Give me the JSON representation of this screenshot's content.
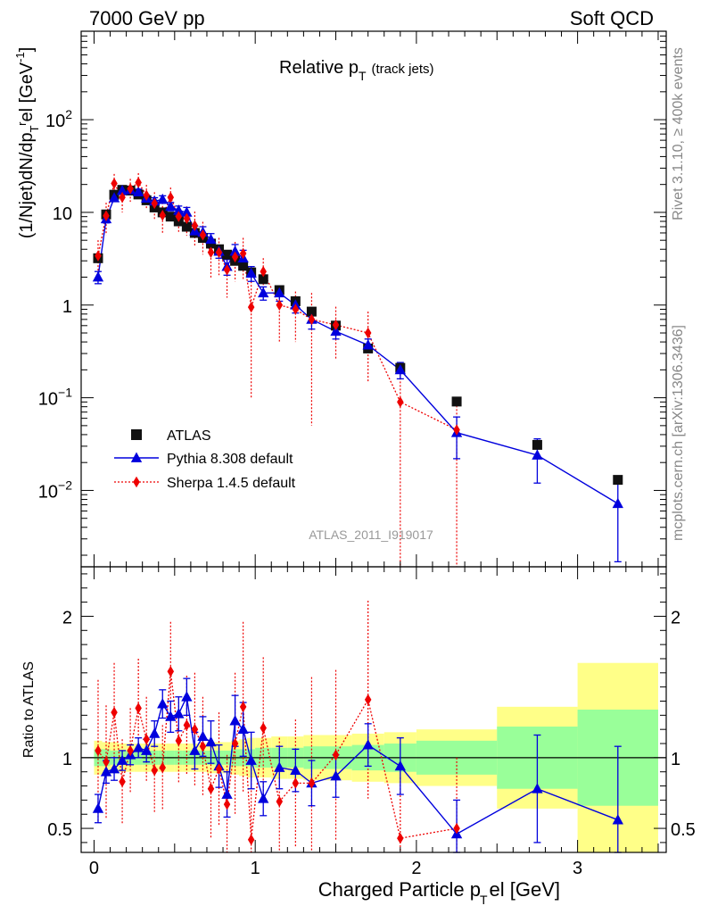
{
  "header": {
    "left": "7000 GeV pp",
    "right": "Soft QCD",
    "rivet": "Rivet 3.1.10, ≥ 400k events",
    "mcplots": "mcplots.cern.ch [arXiv:1306.3436]",
    "analysis": "ATLAS_2011_I919017"
  },
  "chart_data": [
    {
      "type": "scatter",
      "panel": "main",
      "title_main": "Relative p",
      "title_sub": "T",
      "title_note": "(track jets)",
      "ylabel": "(1/Njet)dN/dp",
      "ylabel_tail": "el [GeV",
      "ylabel_exp": "-1",
      "ylabel_close": "]",
      "yscale": "log",
      "ylim": [
        0.0015,
        900
      ],
      "xlim": [
        -0.08,
        3.55
      ],
      "y_ticks": [
        {
          "v": 100,
          "label": "10",
          "exp": "2"
        },
        {
          "v": 10,
          "label": "10",
          "exp": ""
        },
        {
          "v": 1,
          "label": "1",
          "exp": ""
        },
        {
          "v": 0.1,
          "label": "10",
          "exp": "−1"
        },
        {
          "v": 0.01,
          "label": "10",
          "exp": "−2"
        }
      ],
      "legend": [
        {
          "key": "atlas",
          "label": "ATLAS"
        },
        {
          "key": "pythia",
          "label": "Pythia 8.308 default"
        },
        {
          "key": "sherpa",
          "label": "Sherpa 1.4.5 default"
        }
      ],
      "series": [
        {
          "name": "ATLAS",
          "x": [
            0.025,
            0.075,
            0.125,
            0.175,
            0.225,
            0.275,
            0.325,
            0.375,
            0.425,
            0.475,
            0.525,
            0.575,
            0.625,
            0.675,
            0.725,
            0.775,
            0.825,
            0.875,
            0.925,
            0.975,
            1.05,
            1.15,
            1.25,
            1.35,
            1.5,
            1.7,
            1.9,
            2.25,
            2.75,
            3.25
          ],
          "y": [
            3.2,
            9.5,
            15.5,
            17.5,
            17.2,
            15.6,
            13.5,
            11.3,
            10.0,
            9.0,
            8.0,
            7.0,
            6.0,
            5.3,
            4.6,
            4.0,
            3.5,
            3.0,
            2.65,
            2.25,
            1.9,
            1.45,
            1.1,
            0.85,
            0.6,
            0.34,
            0.21,
            0.091,
            0.031,
            0.013
          ]
        },
        {
          "name": "Pythia 8.308 default",
          "x": [
            0.025,
            0.075,
            0.125,
            0.175,
            0.225,
            0.275,
            0.325,
            0.375,
            0.425,
            0.475,
            0.525,
            0.575,
            0.625,
            0.675,
            0.725,
            0.775,
            0.825,
            0.875,
            0.925,
            0.975,
            1.05,
            1.15,
            1.25,
            1.35,
            1.5,
            1.7,
            1.9,
            2.25,
            2.75,
            3.25
          ],
          "y": [
            2.0,
            8.5,
            14.3,
            17.2,
            17.5,
            16.6,
            14.2,
            13.2,
            13.8,
            11.6,
            10.5,
            10.0,
            6.3,
            6.1,
            5.1,
            3.8,
            2.6,
            3.8,
            3.2,
            2.2,
            1.35,
            1.35,
            1.0,
            0.7,
            0.52,
            0.37,
            0.2,
            0.042,
            0.024,
            0.0072
          ],
          "err": [
            0.3,
            0.8,
            1.2,
            1.2,
            1.2,
            1.2,
            1.2,
            1.2,
            1.3,
            1.2,
            1.2,
            1.3,
            0.8,
            0.9,
            0.8,
            0.6,
            0.5,
            0.7,
            0.7,
            0.4,
            0.22,
            0.25,
            0.18,
            0.15,
            0.09,
            0.06,
            0.04,
            0.02,
            0.012,
            0.0055
          ]
        },
        {
          "name": "Sherpa 1.4.5 default",
          "x": [
            0.025,
            0.075,
            0.125,
            0.175,
            0.225,
            0.275,
            0.325,
            0.375,
            0.425,
            0.475,
            0.525,
            0.575,
            0.625,
            0.675,
            0.725,
            0.775,
            0.825,
            0.875,
            0.925,
            0.975,
            1.05,
            1.15,
            1.25,
            1.35,
            1.5,
            1.7,
            1.9,
            2.25
          ],
          "y": [
            3.4,
            9.2,
            20.5,
            14.5,
            18.0,
            21.0,
            15.3,
            12.5,
            9.3,
            14.5,
            9.0,
            8.6,
            7.2,
            5.7,
            3.7,
            3.7,
            2.4,
            3.3,
            3.6,
            0.95,
            2.3,
            1.0,
            0.9,
            0.7,
            0.61,
            0.5,
            0.09,
            0.045
          ],
          "err": [
            1.6,
            3.5,
            5.5,
            4.5,
            5.0,
            5.5,
            4.5,
            4.0,
            3.5,
            4.0,
            3.0,
            3.0,
            3.0,
            2.2,
            1.8,
            1.6,
            1.2,
            1.5,
            1.7,
            0.85,
            0.9,
            0.6,
            0.5,
            0.65,
            0.35,
            0.35,
            0.089,
            0.0449
          ]
        }
      ]
    },
    {
      "type": "scatter",
      "panel": "ratio",
      "ylabel": "Ratio to ATLAS",
      "xlabel": "Charged Particle p",
      "xlabel_sub": "T",
      "xlabel_tail": "el [GeV]",
      "ylim": [
        0.33,
        2.35
      ],
      "y_ticks": [
        0.5,
        1,
        2
      ],
      "x_ticks": [
        0,
        1,
        2,
        3
      ],
      "band_edges": [
        0,
        0.05,
        0.1,
        0.15,
        0.2,
        0.25,
        0.3,
        0.35,
        0.4,
        0.45,
        0.5,
        0.55,
        0.6,
        0.65,
        0.7,
        0.75,
        0.8,
        0.85,
        0.9,
        0.95,
        1.0,
        1.1,
        1.2,
        1.3,
        1.4,
        1.6,
        1.8,
        2.0,
        2.5,
        3.0,
        3.5
      ],
      "band_stat": [
        0.06,
        0.06,
        0.05,
        0.05,
        0.05,
        0.05,
        0.05,
        0.05,
        0.05,
        0.05,
        0.05,
        0.05,
        0.05,
        0.05,
        0.05,
        0.05,
        0.05,
        0.06,
        0.06,
        0.06,
        0.07,
        0.07,
        0.07,
        0.08,
        0.08,
        0.09,
        0.1,
        0.12,
        0.22,
        0.34
      ],
      "band_total": [
        0.12,
        0.11,
        0.11,
        0.1,
        0.1,
        0.1,
        0.1,
        0.1,
        0.1,
        0.1,
        0.1,
        0.1,
        0.1,
        0.1,
        0.11,
        0.11,
        0.11,
        0.12,
        0.13,
        0.14,
        0.14,
        0.15,
        0.15,
        0.16,
        0.16,
        0.17,
        0.18,
        0.2,
        0.36,
        0.67
      ],
      "series": [
        {
          "name": "Pythia 8.308 default",
          "x": [
            0.025,
            0.075,
            0.125,
            0.175,
            0.225,
            0.275,
            0.325,
            0.375,
            0.425,
            0.475,
            0.525,
            0.575,
            0.625,
            0.675,
            0.725,
            0.775,
            0.825,
            0.875,
            0.925,
            0.975,
            1.05,
            1.15,
            1.25,
            1.35,
            1.5,
            1.7,
            1.9,
            2.25,
            2.75,
            3.25
          ],
          "y": [
            0.64,
            0.9,
            0.92,
            0.98,
            1.02,
            1.07,
            1.05,
            1.17,
            1.38,
            1.29,
            1.31,
            1.43,
            1.05,
            1.15,
            1.11,
            0.94,
            0.74,
            1.26,
            1.2,
            0.98,
            0.71,
            0.93,
            0.91,
            0.82,
            0.87,
            1.09,
            0.94,
            0.46,
            0.78,
            0.56
          ],
          "err": [
            0.1,
            0.08,
            0.08,
            0.07,
            0.07,
            0.07,
            0.08,
            0.09,
            0.1,
            0.11,
            0.12,
            0.13,
            0.13,
            0.14,
            0.15,
            0.15,
            0.16,
            0.18,
            0.19,
            0.2,
            0.12,
            0.15,
            0.15,
            0.16,
            0.15,
            0.15,
            0.2,
            0.24,
            0.38,
            0.52
          ]
        },
        {
          "name": "Sherpa 1.4.5 default",
          "x": [
            0.025,
            0.075,
            0.125,
            0.175,
            0.225,
            0.275,
            0.325,
            0.375,
            0.425,
            0.475,
            0.525,
            0.575,
            0.625,
            0.675,
            0.725,
            0.775,
            0.825,
            0.875,
            0.925,
            0.975,
            1.05,
            1.15,
            1.25,
            1.35,
            1.5,
            1.7,
            1.9,
            2.25
          ],
          "y": [
            1.05,
            0.97,
            1.32,
            0.83,
            1.05,
            1.35,
            1.13,
            0.91,
            0.93,
            1.61,
            1.12,
            1.23,
            1.2,
            1.08,
            0.78,
            0.92,
            0.67,
            1.1,
            1.36,
            0.42,
            1.21,
            0.69,
            0.82,
            0.82,
            1.02,
            1.41,
            0.43,
            0.5
          ],
          "err": [
            0.5,
            0.4,
            0.35,
            0.3,
            0.3,
            0.35,
            0.3,
            0.3,
            0.3,
            0.35,
            0.3,
            0.35,
            0.4,
            0.35,
            0.35,
            0.4,
            0.35,
            0.5,
            0.6,
            0.5,
            0.5,
            0.45,
            0.45,
            0.75,
            0.6,
            0.7,
            0.43,
            0.5
          ]
        }
      ]
    }
  ]
}
